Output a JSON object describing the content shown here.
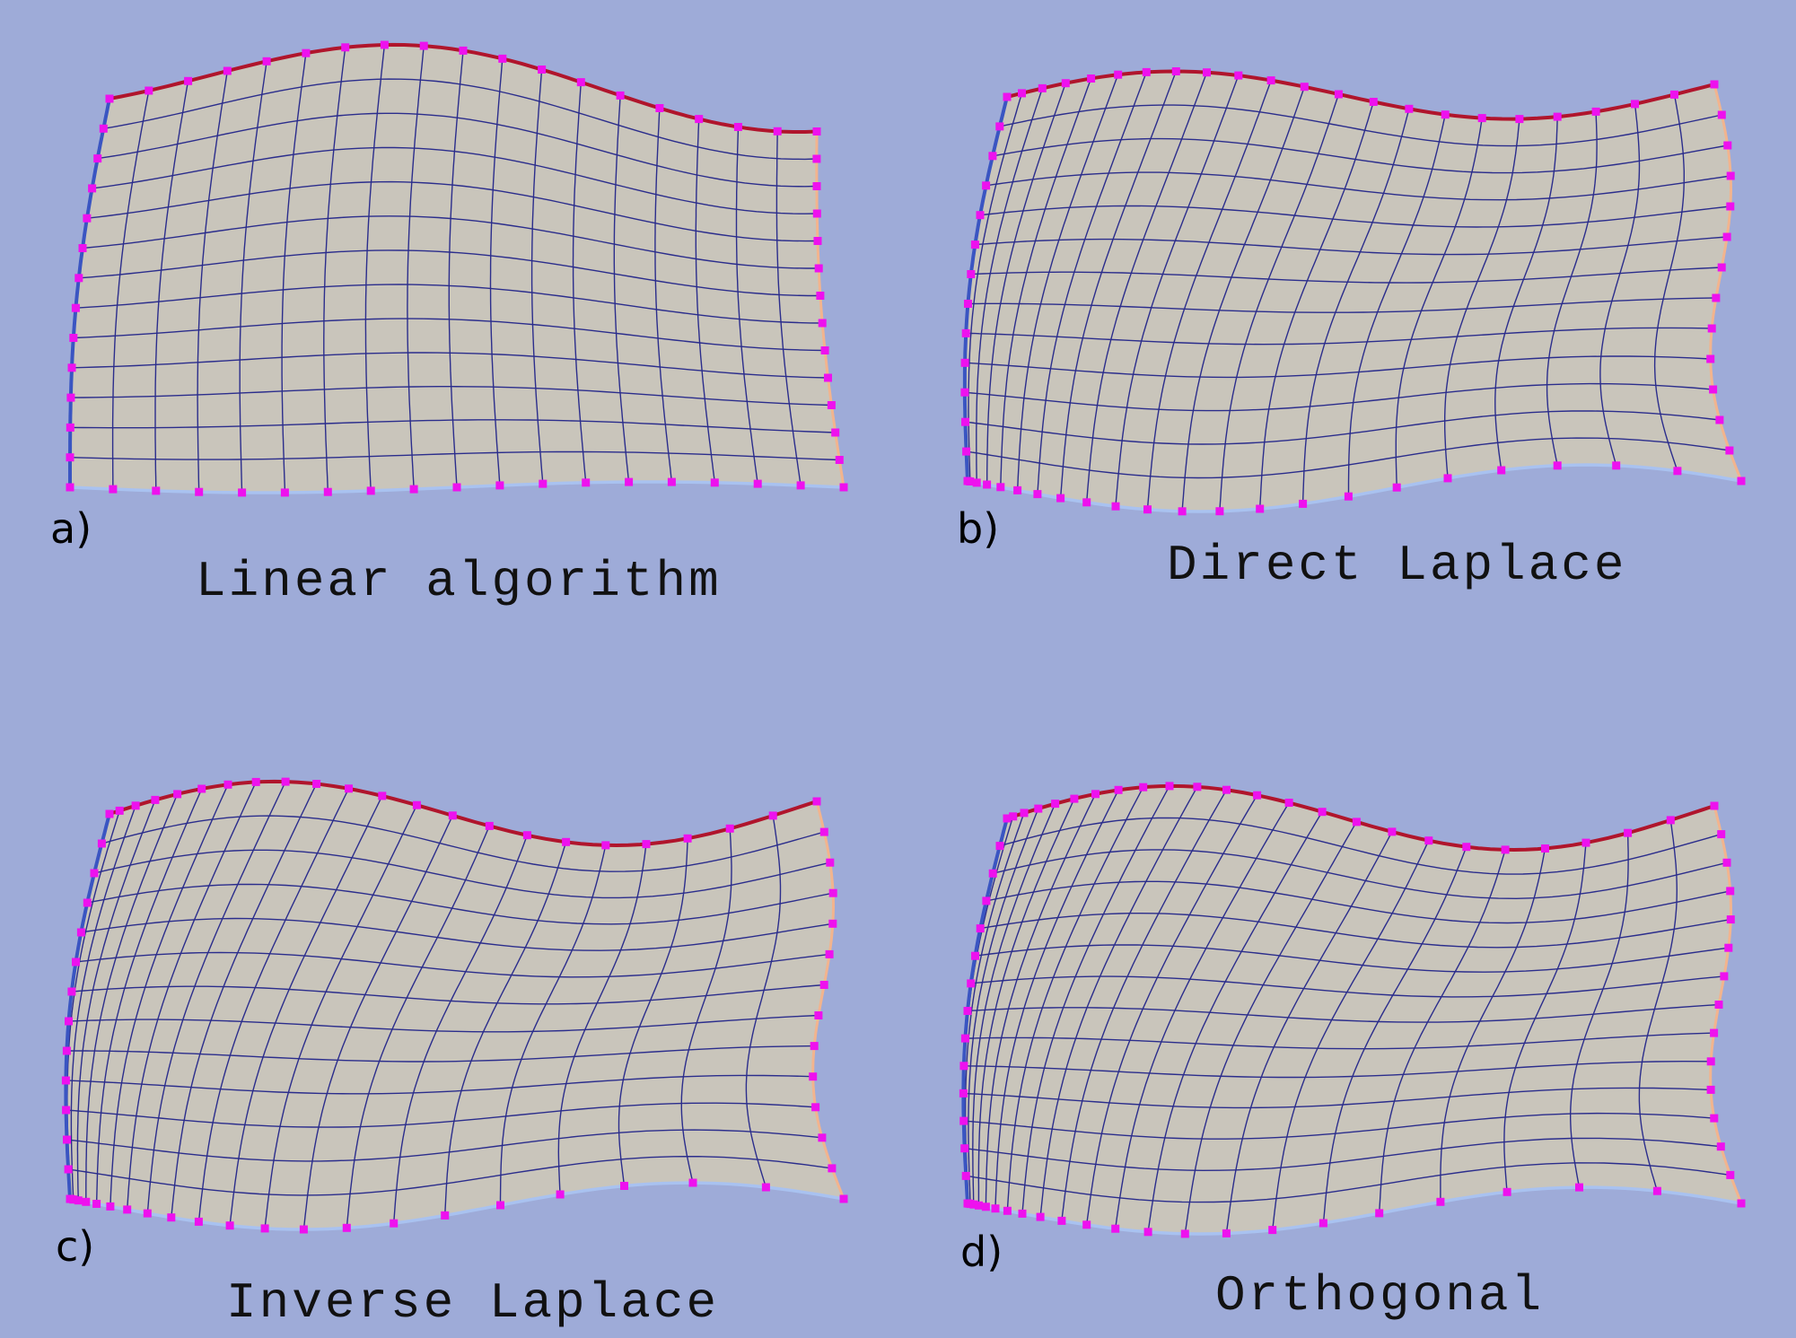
{
  "colors": {
    "background": "#9eabd8",
    "fill": "#c9c5bb",
    "grid_line": "#2b2d8c",
    "top_boundary": "#b0152c",
    "left_boundary": "#3a55c2",
    "bottom_boundary": "#a9c2f0",
    "right_boundary": "#f2b48e",
    "node": "#ee11ee"
  },
  "panels": [
    {
      "id": "a",
      "letter": "a)",
      "caption": "Linear algorithm",
      "method": "linear"
    },
    {
      "id": "b",
      "letter": "b)",
      "caption": "Direct Laplace",
      "method": "direct"
    },
    {
      "id": "c",
      "letter": "c)",
      "caption": "Inverse Laplace",
      "method": "inverse"
    },
    {
      "id": "d",
      "letter": "d)",
      "caption": "Orthogonal",
      "method": "orthogonal"
    }
  ]
}
